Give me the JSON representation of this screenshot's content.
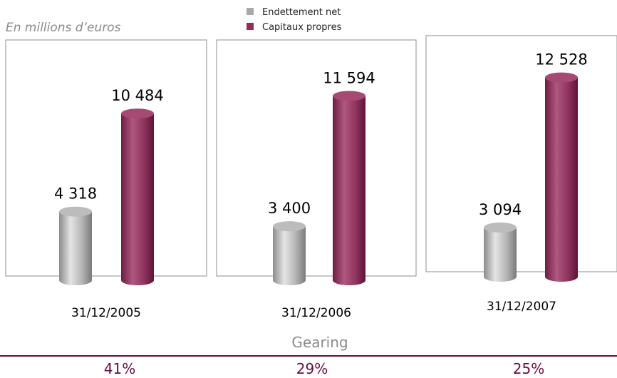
{
  "chart_data": {
    "type": "bar",
    "unit_label": "En millions d’euros",
    "categories": [
      "31/12/2005",
      "31/12/2006",
      "31/12/2007"
    ],
    "series": [
      {
        "name": "Endettement net",
        "values": [
          4318,
          3400,
          3094
        ],
        "labels": [
          "4 318",
          "3 400",
          "3 094"
        ],
        "color": "#a8a8a8"
      },
      {
        "name": "Capitaux propres",
        "values": [
          10484,
          11594,
          12528
        ],
        "labels": [
          "10 484",
          "11 594",
          "12 528"
        ],
        "color": "#8e2f5c"
      }
    ],
    "gearing": {
      "title": "Gearing",
      "values": [
        "41%",
        "29%",
        "25%"
      ]
    },
    "legend_position": "top-center",
    "grid": false
  }
}
